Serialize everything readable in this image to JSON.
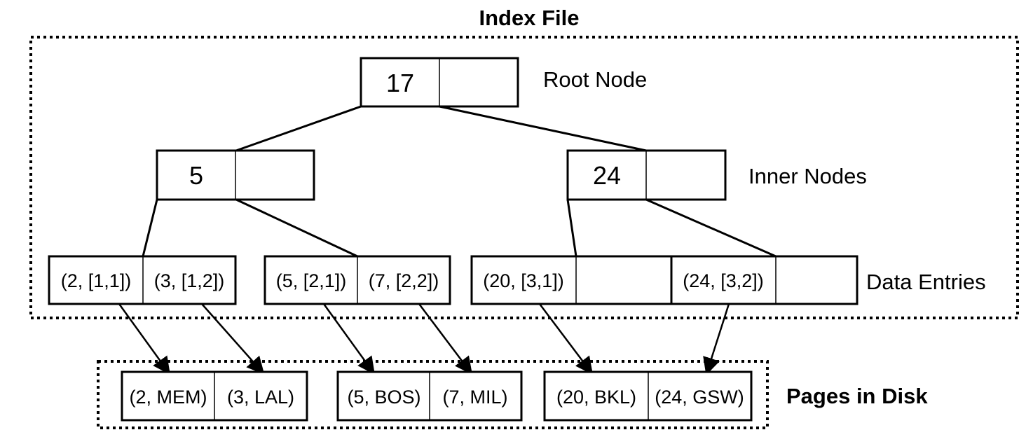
{
  "title": "Index File",
  "labels": {
    "root": "Root Node",
    "inner": "Inner Nodes",
    "data": "Data Entries",
    "disk": "Pages in Disk"
  },
  "root": {
    "keys": [
      "17",
      ""
    ]
  },
  "inner_nodes": [
    {
      "keys": [
        "5",
        ""
      ]
    },
    {
      "keys": [
        "24",
        ""
      ]
    }
  ],
  "data_entries": [
    {
      "entries": [
        "(2, [1,1])",
        "(3, [1,2])"
      ]
    },
    {
      "entries": [
        "(5, [2,1])",
        "(7, [2,2])"
      ]
    },
    {
      "entries": [
        "(20, [3,1])",
        ""
      ]
    },
    {
      "entries": [
        "(24, [3,2])",
        ""
      ]
    }
  ],
  "disk_pages": [
    {
      "records": [
        "(2, MEM)",
        "(3, LAL)"
      ]
    },
    {
      "records": [
        "(5, BOS)",
        "(7, MIL)"
      ]
    },
    {
      "records": [
        "(20, BKL)",
        "(24, GSW)"
      ]
    }
  ]
}
